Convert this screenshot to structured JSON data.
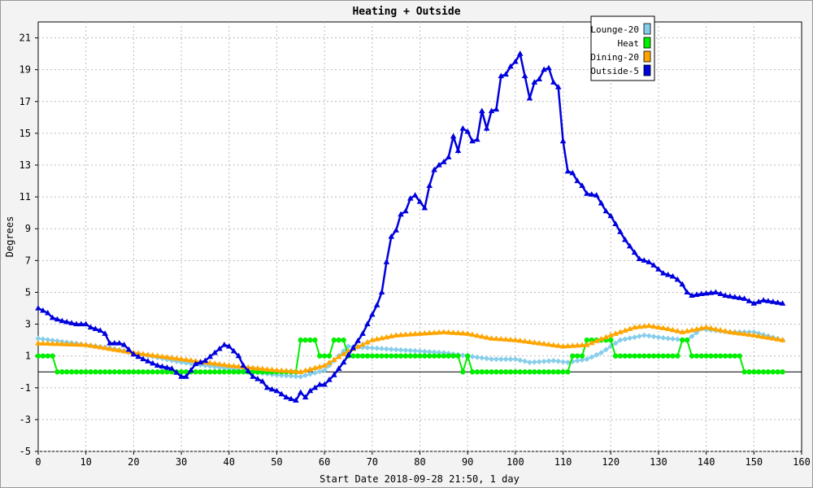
{
  "chart_data": {
    "type": "line",
    "title": "Heating + Outside",
    "xlabel": "Start Date 2018-09-28 21:50, 1 day",
    "ylabel": "Degrees",
    "xlim": [
      0,
      160
    ],
    "ylim": [
      -5,
      22
    ],
    "x_ticks": [
      0,
      10,
      20,
      30,
      40,
      50,
      60,
      70,
      80,
      90,
      100,
      110,
      120,
      130,
      140,
      150,
      160
    ],
    "y_ticks": [
      -5,
      -3,
      -1,
      1,
      3,
      5,
      7,
      9,
      11,
      13,
      15,
      17,
      19,
      21
    ],
    "grid": true,
    "legend_position": "top-right",
    "series": [
      {
        "name": "Lounge-20",
        "color": "#87ceeb",
        "marker": "diamond",
        "points": [
          [
            0,
            2.1
          ],
          [
            5,
            1.9
          ],
          [
            10,
            1.7
          ],
          [
            15,
            1.5
          ],
          [
            20,
            1.2
          ],
          [
            25,
            0.9
          ],
          [
            30,
            0.6
          ],
          [
            35,
            0.4
          ],
          [
            40,
            0.2
          ],
          [
            45,
            0.0
          ],
          [
            50,
            -0.2
          ],
          [
            55,
            -0.3
          ],
          [
            60,
            0.1
          ],
          [
            63,
            1.0
          ],
          [
            65,
            1.6
          ],
          [
            70,
            1.5
          ],
          [
            75,
            1.4
          ],
          [
            80,
            1.3
          ],
          [
            85,
            1.2
          ],
          [
            90,
            1.0
          ],
          [
            95,
            0.8
          ],
          [
            100,
            0.8
          ],
          [
            103,
            0.6
          ],
          [
            108,
            0.7
          ],
          [
            111,
            0.6
          ],
          [
            115,
            0.8
          ],
          [
            118,
            1.2
          ],
          [
            122,
            2.0
          ],
          [
            127,
            2.3
          ],
          [
            132,
            2.1
          ],
          [
            136,
            2.0
          ],
          [
            139,
            2.7
          ],
          [
            145,
            2.5
          ],
          [
            150,
            2.5
          ],
          [
            156,
            2.0
          ]
        ]
      },
      {
        "name": "Heat",
        "color": "#00ee00",
        "marker": "circle",
        "points": [
          [
            0,
            1
          ],
          [
            3,
            1
          ],
          [
            4,
            0
          ],
          [
            54,
            0
          ],
          [
            55,
            2
          ],
          [
            58,
            2
          ],
          [
            59,
            1
          ],
          [
            61,
            1
          ],
          [
            62,
            2
          ],
          [
            64,
            2
          ],
          [
            65,
            1
          ],
          [
            88,
            1
          ],
          [
            89,
            0
          ],
          [
            90,
            1
          ],
          [
            91,
            0
          ],
          [
            111,
            0
          ],
          [
            112,
            1
          ],
          [
            114,
            1
          ],
          [
            115,
            2
          ],
          [
            120,
            2
          ],
          [
            121,
            1
          ],
          [
            134,
            1
          ],
          [
            135,
            2
          ],
          [
            136,
            2
          ],
          [
            137,
            1
          ],
          [
            147,
            1
          ],
          [
            148,
            0
          ],
          [
            156,
            0
          ]
        ]
      },
      {
        "name": "Dining-20",
        "color": "#ffa500",
        "marker": "triangle",
        "points": [
          [
            0,
            1.8
          ],
          [
            10,
            1.7
          ],
          [
            20,
            1.2
          ],
          [
            30,
            0.8
          ],
          [
            40,
            0.4
          ],
          [
            50,
            0.1
          ],
          [
            55,
            0.0
          ],
          [
            60,
            0.4
          ],
          [
            65,
            1.3
          ],
          [
            70,
            2.0
          ],
          [
            75,
            2.3
          ],
          [
            80,
            2.4
          ],
          [
            85,
            2.5
          ],
          [
            90,
            2.4
          ],
          [
            95,
            2.1
          ],
          [
            100,
            2.0
          ],
          [
            105,
            1.8
          ],
          [
            110,
            1.6
          ],
          [
            115,
            1.7
          ],
          [
            120,
            2.3
          ],
          [
            125,
            2.8
          ],
          [
            128,
            2.9
          ],
          [
            132,
            2.7
          ],
          [
            135,
            2.5
          ],
          [
            140,
            2.8
          ],
          [
            145,
            2.5
          ],
          [
            150,
            2.3
          ],
          [
            156,
            2.0
          ]
        ]
      },
      {
        "name": "Outside-5",
        "color": "#0000dd",
        "marker": "triangle",
        "points": [
          [
            0,
            4.0
          ],
          [
            2,
            3.7
          ],
          [
            3,
            3.4
          ],
          [
            5,
            3.2
          ],
          [
            8,
            3.0
          ],
          [
            10,
            3.0
          ],
          [
            11,
            2.8
          ],
          [
            13,
            2.6
          ],
          [
            14,
            2.4
          ],
          [
            15,
            1.8
          ],
          [
            17,
            1.8
          ],
          [
            18,
            1.7
          ],
          [
            20,
            1.1
          ],
          [
            22,
            0.8
          ],
          [
            25,
            0.4
          ],
          [
            28,
            0.2
          ],
          [
            30,
            -0.3
          ],
          [
            31,
            -0.3
          ],
          [
            33,
            0.5
          ],
          [
            35,
            0.7
          ],
          [
            37,
            1.2
          ],
          [
            39,
            1.7
          ],
          [
            40,
            1.6
          ],
          [
            42,
            1.0
          ],
          [
            43,
            0.4
          ],
          [
            45,
            -0.3
          ],
          [
            47,
            -0.6
          ],
          [
            48,
            -1.0
          ],
          [
            50,
            -1.2
          ],
          [
            52,
            -1.6
          ],
          [
            54,
            -1.8
          ],
          [
            55,
            -1.3
          ],
          [
            56,
            -1.6
          ],
          [
            57,
            -1.2
          ],
          [
            59,
            -0.8
          ],
          [
            60,
            -0.8
          ],
          [
            62,
            -0.2
          ],
          [
            64,
            0.6
          ],
          [
            66,
            1.5
          ],
          [
            68,
            2.4
          ],
          [
            69,
            3.0
          ],
          [
            70,
            3.6
          ],
          [
            71,
            4.2
          ],
          [
            72,
            5.0
          ],
          [
            73,
            6.9
          ],
          [
            74,
            8.5
          ],
          [
            75,
            8.9
          ],
          [
            76,
            9.9
          ],
          [
            77,
            10.1
          ],
          [
            78,
            10.9
          ],
          [
            79,
            11.1
          ],
          [
            80,
            10.7
          ],
          [
            81,
            10.3
          ],
          [
            82,
            11.7
          ],
          [
            83,
            12.7
          ],
          [
            84,
            13.0
          ],
          [
            85,
            13.2
          ],
          [
            86,
            13.5
          ],
          [
            87,
            14.8
          ],
          [
            88,
            13.9
          ],
          [
            89,
            15.3
          ],
          [
            90,
            15.1
          ],
          [
            91,
            14.5
          ],
          [
            92,
            14.6
          ],
          [
            93,
            16.4
          ],
          [
            94,
            15.3
          ],
          [
            95,
            16.4
          ],
          [
            96,
            16.5
          ],
          [
            97,
            18.6
          ],
          [
            98,
            18.7
          ],
          [
            99,
            19.2
          ],
          [
            100,
            19.5
          ],
          [
            101,
            20.0
          ],
          [
            102,
            18.6
          ],
          [
            103,
            17.2
          ],
          [
            104,
            18.2
          ],
          [
            105,
            18.4
          ],
          [
            106,
            19.0
          ],
          [
            107,
            19.1
          ],
          [
            108,
            18.2
          ],
          [
            109,
            17.9
          ],
          [
            110,
            14.5
          ],
          [
            111,
            12.6
          ],
          [
            112,
            12.5
          ],
          [
            113,
            12.0
          ],
          [
            114,
            11.7
          ],
          [
            115,
            11.2
          ],
          [
            117,
            11.1
          ],
          [
            118,
            10.6
          ],
          [
            119,
            10.1
          ],
          [
            120,
            9.8
          ],
          [
            121,
            9.3
          ],
          [
            122,
            8.8
          ],
          [
            123,
            8.3
          ],
          [
            124,
            7.9
          ],
          [
            125,
            7.5
          ],
          [
            126,
            7.1
          ],
          [
            128,
            6.9
          ],
          [
            129,
            6.7
          ],
          [
            131,
            6.2
          ],
          [
            133,
            6.0
          ],
          [
            134,
            5.8
          ],
          [
            135,
            5.5
          ],
          [
            136,
            5.0
          ],
          [
            137,
            4.8
          ],
          [
            139,
            4.9
          ],
          [
            142,
            5.0
          ],
          [
            144,
            4.8
          ],
          [
            146,
            4.7
          ],
          [
            148,
            4.6
          ],
          [
            150,
            4.3
          ],
          [
            152,
            4.5
          ],
          [
            154,
            4.4
          ],
          [
            156,
            4.3
          ]
        ]
      }
    ]
  }
}
